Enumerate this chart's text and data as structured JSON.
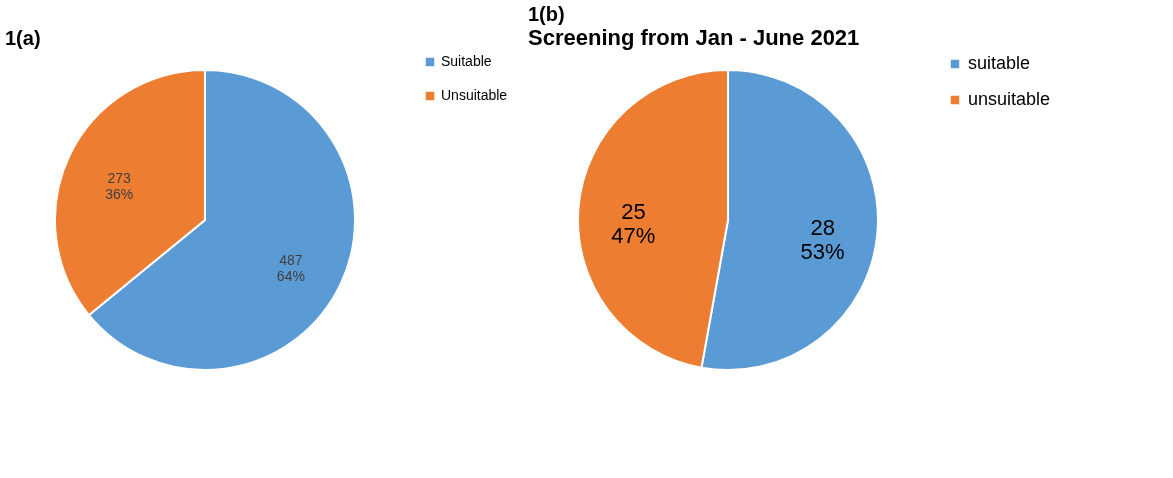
{
  "chart_data": [
    {
      "type": "pie",
      "title": "1(a)",
      "categories": [
        "Suitable",
        "Unsuitable"
      ],
      "values": [
        487,
        273
      ],
      "colors": [
        "#5b9bd5",
        "#ed7d31"
      ],
      "value_labels": [
        "487\n64%",
        "273\n36%"
      ],
      "legend": "right"
    },
    {
      "type": "pie",
      "title": "1(b)",
      "subtitle": "Screening from Jan - June 2021",
      "categories": [
        "suitable",
        "unsuitable"
      ],
      "values": [
        28,
        25
      ],
      "colors": [
        "#5b9bd5",
        "#ed7d31"
      ],
      "value_labels": [
        "28\n53%",
        "25\n47%"
      ],
      "legend": "right"
    }
  ]
}
